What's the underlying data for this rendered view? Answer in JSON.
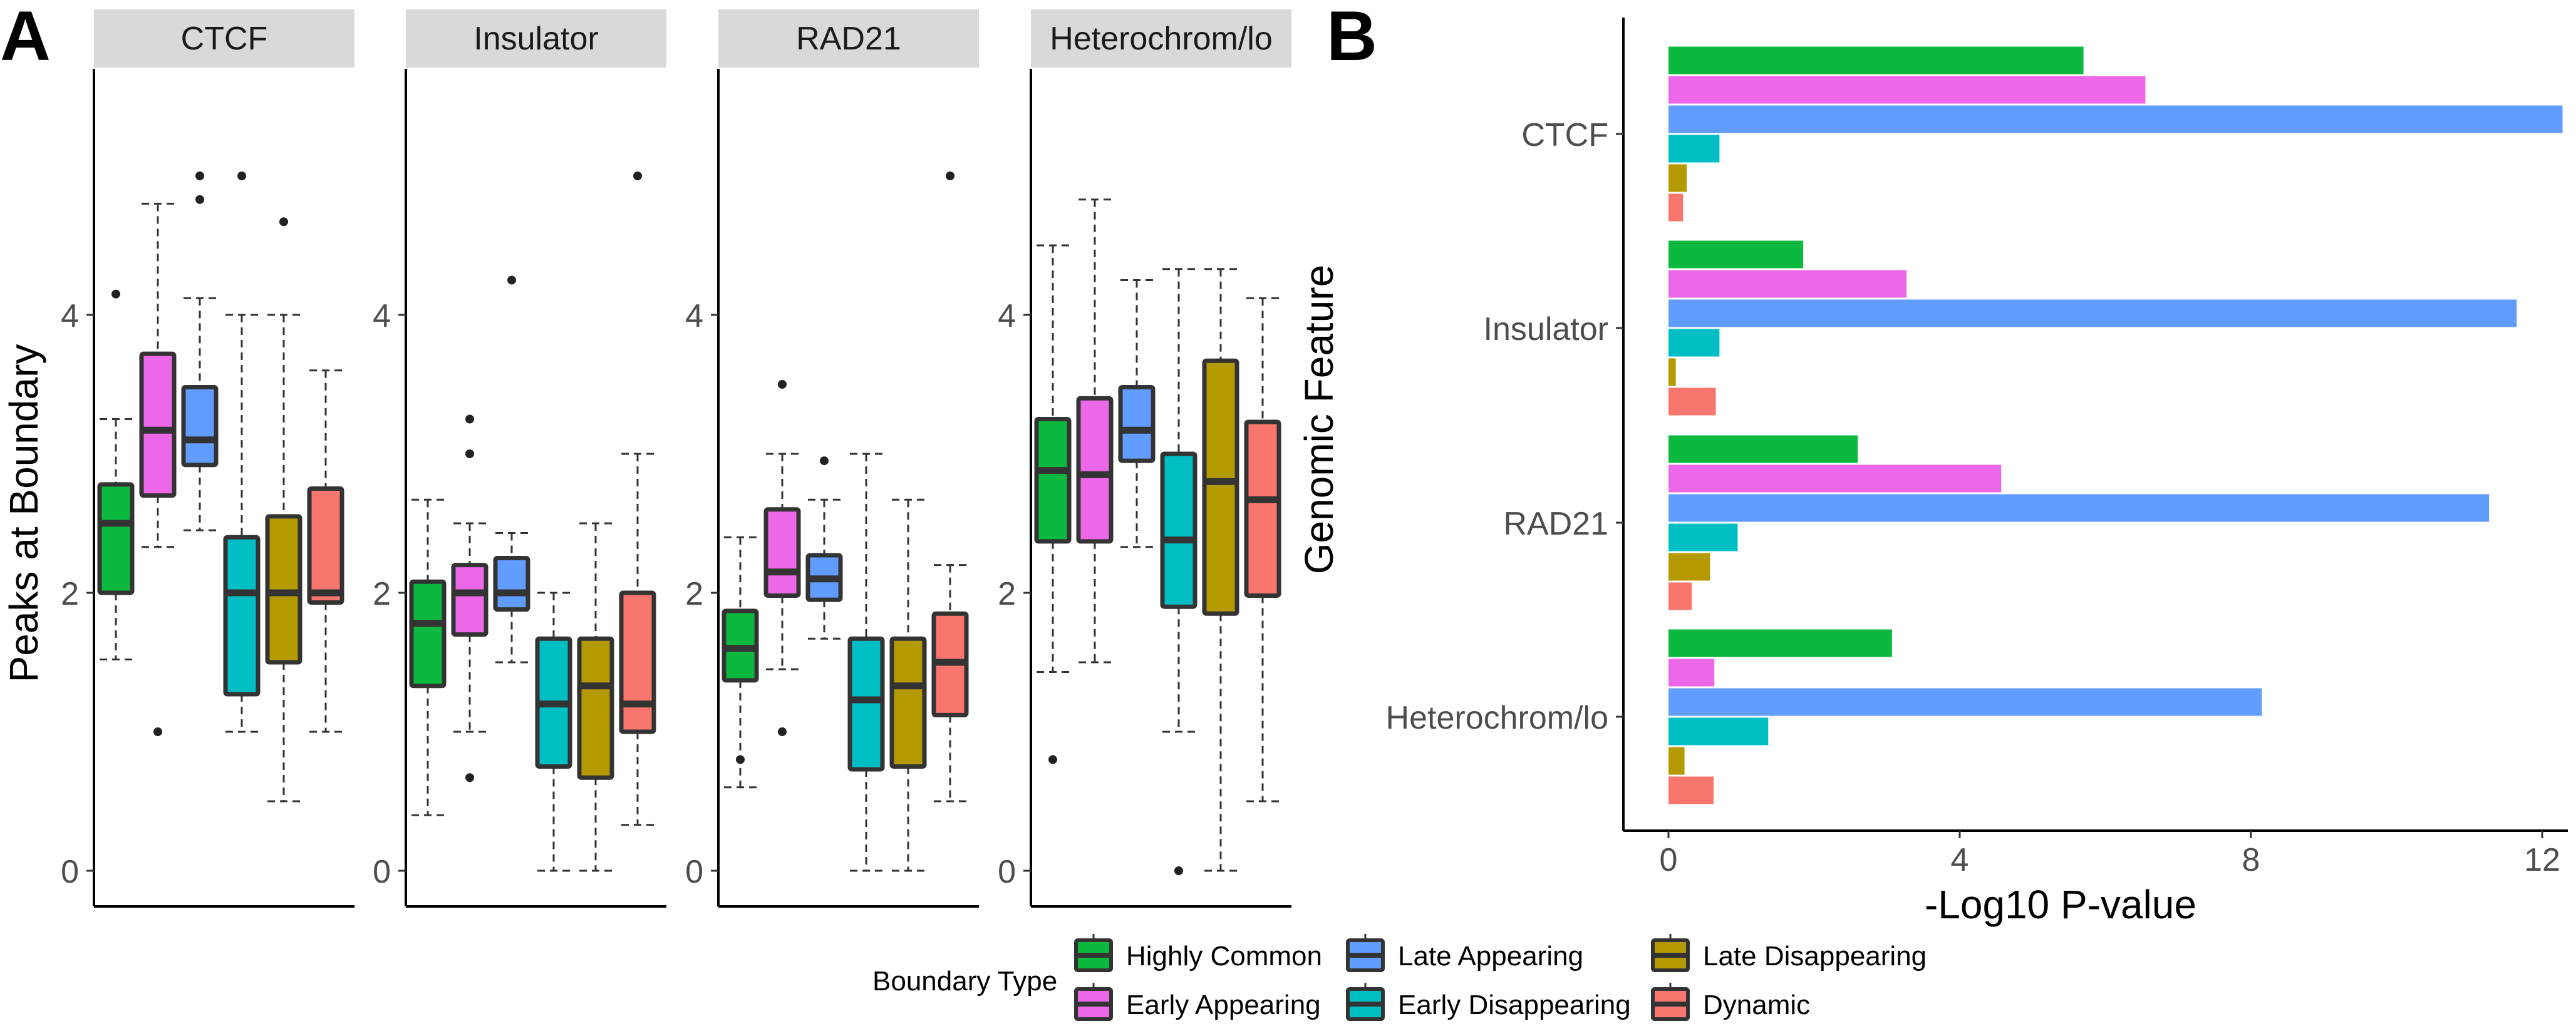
{
  "panel_labels": [
    "A",
    "B"
  ],
  "colors": {
    "Highly Common": "#0CB93F",
    "Early Appearing": "#EC68E8",
    "Late Appearing": "#619CFF",
    "Early Disappearing": "#00BFC4",
    "Late Disappearing": "#B49A00",
    "Dynamic": "#F8766D"
  },
  "legend": {
    "title": "Boundary Type",
    "items": [
      "Highly Common",
      "Early Appearing",
      "Late Appearing",
      "Early Disappearing",
      "Late Disappearing",
      "Dynamic"
    ]
  },
  "chart_data": [
    {
      "type": "boxplot",
      "panel": "A",
      "ylabel": "Peaks at Boundary",
      "xlabel": "",
      "ylim": [
        0,
        5.1
      ],
      "yticks": [
        0,
        2,
        4
      ],
      "grid": false,
      "groups": [
        "Highly Common",
        "Early Appearing",
        "Late Appearing",
        "Early Disappearing",
        "Late Disappearing",
        "Dynamic"
      ],
      "facets": [
        {
          "strip": "CTCF",
          "boxes": [
            {
              "group": "Highly Common",
              "min": 1.52,
              "q1": 2.0,
              "median": 2.5,
              "q3": 2.78,
              "max": 3.25,
              "outliers": [
                4.15
              ]
            },
            {
              "group": "Early Appearing",
              "min": 2.33,
              "q1": 2.7,
              "median": 3.17,
              "q3": 3.72,
              "max": 4.8,
              "outliers": [
                1.0
              ]
            },
            {
              "group": "Late Appearing",
              "min": 2.45,
              "q1": 2.92,
              "median": 3.1,
              "q3": 3.48,
              "max": 4.12,
              "outliers": [
                4.83,
                5.0
              ]
            },
            {
              "group": "Early Disappearing",
              "min": 1.0,
              "q1": 1.27,
              "median": 2.0,
              "q3": 2.4,
              "max": 4.0,
              "outliers": [
                5.0
              ]
            },
            {
              "group": "Late Disappearing",
              "min": 0.5,
              "q1": 1.5,
              "median": 2.0,
              "q3": 2.55,
              "max": 4.0,
              "outliers": [
                4.67
              ]
            },
            {
              "group": "Dynamic",
              "min": 1.0,
              "q1": 1.93,
              "median": 2.0,
              "q3": 2.75,
              "max": 3.6,
              "outliers": []
            }
          ]
        },
        {
          "strip": "Insulator",
          "boxes": [
            {
              "group": "Highly Common",
              "min": 0.4,
              "q1": 1.33,
              "median": 1.78,
              "q3": 2.08,
              "max": 2.67,
              "outliers": []
            },
            {
              "group": "Early Appearing",
              "min": 1.0,
              "q1": 1.7,
              "median": 2.0,
              "q3": 2.2,
              "max": 2.5,
              "outliers": [
                3.25,
                3.0,
                0.67
              ]
            },
            {
              "group": "Late Appearing",
              "min": 1.5,
              "q1": 1.88,
              "median": 2.0,
              "q3": 2.25,
              "max": 2.43,
              "outliers": [
                4.25
              ]
            },
            {
              "group": "Early Disappearing",
              "min": 0.0,
              "q1": 0.75,
              "median": 1.2,
              "q3": 1.67,
              "max": 2.0,
              "outliers": []
            },
            {
              "group": "Late Disappearing",
              "min": 0.0,
              "q1": 0.67,
              "median": 1.33,
              "q3": 1.67,
              "max": 2.5,
              "outliers": []
            },
            {
              "group": "Dynamic",
              "min": 0.33,
              "q1": 1.0,
              "median": 1.2,
              "q3": 2.0,
              "max": 3.0,
              "outliers": [
                5.0
              ]
            }
          ]
        },
        {
          "strip": "RAD21",
          "boxes": [
            {
              "group": "Highly Common",
              "min": 0.6,
              "q1": 1.37,
              "median": 1.6,
              "q3": 1.87,
              "max": 2.4,
              "outliers": [
                0.8
              ]
            },
            {
              "group": "Early Appearing",
              "min": 1.45,
              "q1": 1.98,
              "median": 2.15,
              "q3": 2.6,
              "max": 3.0,
              "outliers": [
                3.5,
                1.0
              ]
            },
            {
              "group": "Late Appearing",
              "min": 1.67,
              "q1": 1.95,
              "median": 2.1,
              "q3": 2.27,
              "max": 2.67,
              "outliers": [
                2.95
              ]
            },
            {
              "group": "Early Disappearing",
              "min": 0.0,
              "q1": 0.73,
              "median": 1.23,
              "q3": 1.67,
              "max": 3.0,
              "outliers": []
            },
            {
              "group": "Late Disappearing",
              "min": 0.0,
              "q1": 0.75,
              "median": 1.33,
              "q3": 1.67,
              "max": 2.67,
              "outliers": []
            },
            {
              "group": "Dynamic",
              "min": 0.5,
              "q1": 1.12,
              "median": 1.5,
              "q3": 1.85,
              "max": 2.2,
              "outliers": [
                5.0
              ]
            }
          ]
        },
        {
          "strip": "Heterochrom/lo",
          "boxes": [
            {
              "group": "Highly Common",
              "min": 1.43,
              "q1": 2.37,
              "median": 2.88,
              "q3": 3.25,
              "max": 4.5,
              "outliers": [
                0.8
              ]
            },
            {
              "group": "Early Appearing",
              "min": 1.5,
              "q1": 2.37,
              "median": 2.85,
              "q3": 3.4,
              "max": 4.83,
              "outliers": []
            },
            {
              "group": "Late Appearing",
              "min": 2.33,
              "q1": 2.95,
              "median": 3.17,
              "q3": 3.48,
              "max": 4.25,
              "outliers": []
            },
            {
              "group": "Early Disappearing",
              "min": 1.0,
              "q1": 1.9,
              "median": 2.38,
              "q3": 3.0,
              "max": 4.33,
              "outliers": [
                0.0
              ]
            },
            {
              "group": "Late Disappearing",
              "min": 0.0,
              "q1": 1.85,
              "median": 2.8,
              "q3": 3.67,
              "max": 4.33,
              "outliers": []
            },
            {
              "group": "Dynamic",
              "min": 0.5,
              "q1": 1.98,
              "median": 2.67,
              "q3": 3.23,
              "max": 4.12,
              "outliers": []
            }
          ]
        }
      ]
    },
    {
      "type": "bar",
      "orientation": "horizontal",
      "panel": "B",
      "xlabel": "-Log10 P-value",
      "ylabel": "Genomic Feature",
      "xlim": [
        -0.6,
        12.6
      ],
      "xticks": [
        0,
        4,
        8,
        12
      ],
      "grid": false,
      "categories": [
        "CTCF",
        "Insulator",
        "RAD21",
        "Heterochrom/lo"
      ],
      "series": [
        {
          "name": "Highly Common",
          "values": [
            5.7,
            1.85,
            2.6,
            3.07
          ]
        },
        {
          "name": "Early Appearing",
          "values": [
            6.55,
            3.27,
            4.57,
            0.63
          ]
        },
        {
          "name": "Late Appearing",
          "values": [
            12.28,
            11.65,
            11.27,
            8.15
          ]
        },
        {
          "name": "Early Disappearing",
          "values": [
            0.7,
            0.7,
            0.95,
            1.37
          ]
        },
        {
          "name": "Late Disappearing",
          "values": [
            0.25,
            0.1,
            0.57,
            0.22
          ]
        },
        {
          "name": "Dynamic",
          "values": [
            0.2,
            0.65,
            0.32,
            0.62
          ]
        }
      ]
    }
  ]
}
